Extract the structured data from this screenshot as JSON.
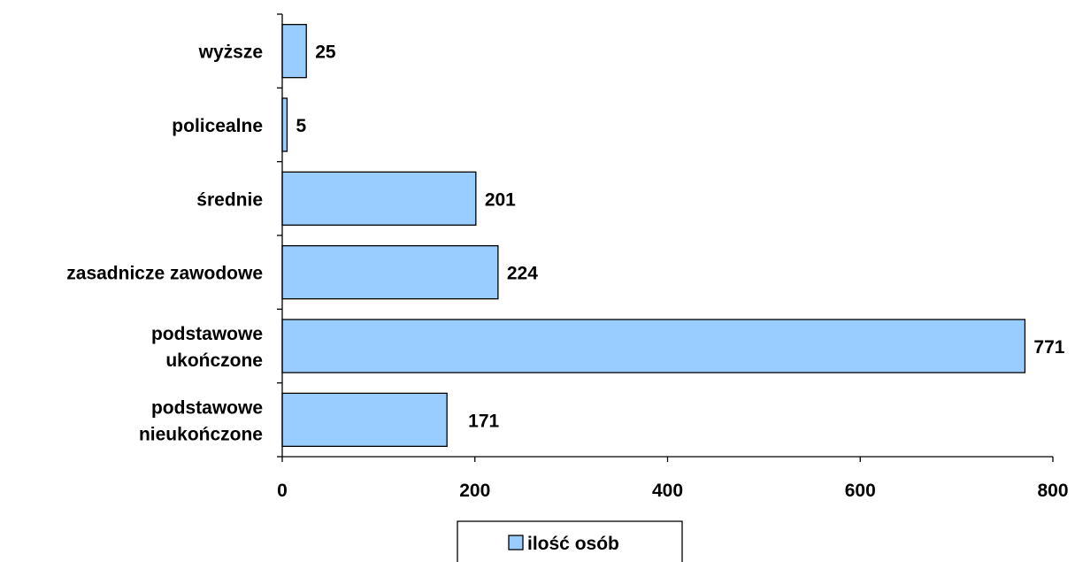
{
  "chart_data": {
    "type": "bar",
    "orientation": "horizontal",
    "categories": [
      [
        "wyższe"
      ],
      [
        "policealne"
      ],
      [
        "średnie"
      ],
      [
        "zasadnicze zawodowe"
      ],
      [
        "podstawowe",
        "ukończone"
      ],
      [
        "podstawowe",
        "nieukończone"
      ]
    ],
    "series": [
      {
        "name": "ilość osób",
        "values": [
          25,
          5,
          201,
          224,
          771,
          171
        ],
        "color": "#99ccff"
      }
    ],
    "xlim": [
      0,
      800
    ],
    "xticks": [
      0,
      200,
      400,
      600,
      800
    ],
    "grid": false,
    "legend_position": "bottom",
    "bar_border_color": "#000000"
  }
}
